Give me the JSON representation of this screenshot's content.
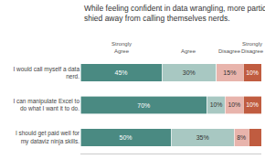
{
  "chart_data": {
    "type": "bar",
    "orientation": "horizontal",
    "stacked": true,
    "title": "While feeling confident in data wrangling, more participants\nshied away from calling themselves nerds.",
    "categories": [
      "I would call myself a data\nnerd.",
      "I can manipulate Excel to\ndo what I want it to do.",
      "I should get paid well for\nmy dataviz ninja skills."
    ],
    "series": [
      {
        "name": "Strongly\nAgree",
        "color": "#4a8a82",
        "values": [
          45,
          70,
          50
        ],
        "value_labels": [
          "45%",
          "70%",
          "50%"
        ]
      },
      {
        "name": "Agree",
        "color": "#a8c8c2",
        "values": [
          30,
          10,
          35
        ],
        "value_labels": [
          "30%",
          "10%",
          "35%"
        ]
      },
      {
        "name": "Disagree",
        "color": "#e8b4ac",
        "values": [
          15,
          10,
          8
        ],
        "value_labels": [
          "15%",
          "10%",
          "8%"
        ]
      },
      {
        "name": "Strongly\nDisagree",
        "color": "#c05c40",
        "values": [
          10,
          10,
          7
        ],
        "value_labels": [
          "10%",
          "10%",
          null
        ]
      }
    ],
    "xlim": [
      0,
      100
    ],
    "tick_labels": "y",
    "grid": false,
    "data_labels": true
  }
}
